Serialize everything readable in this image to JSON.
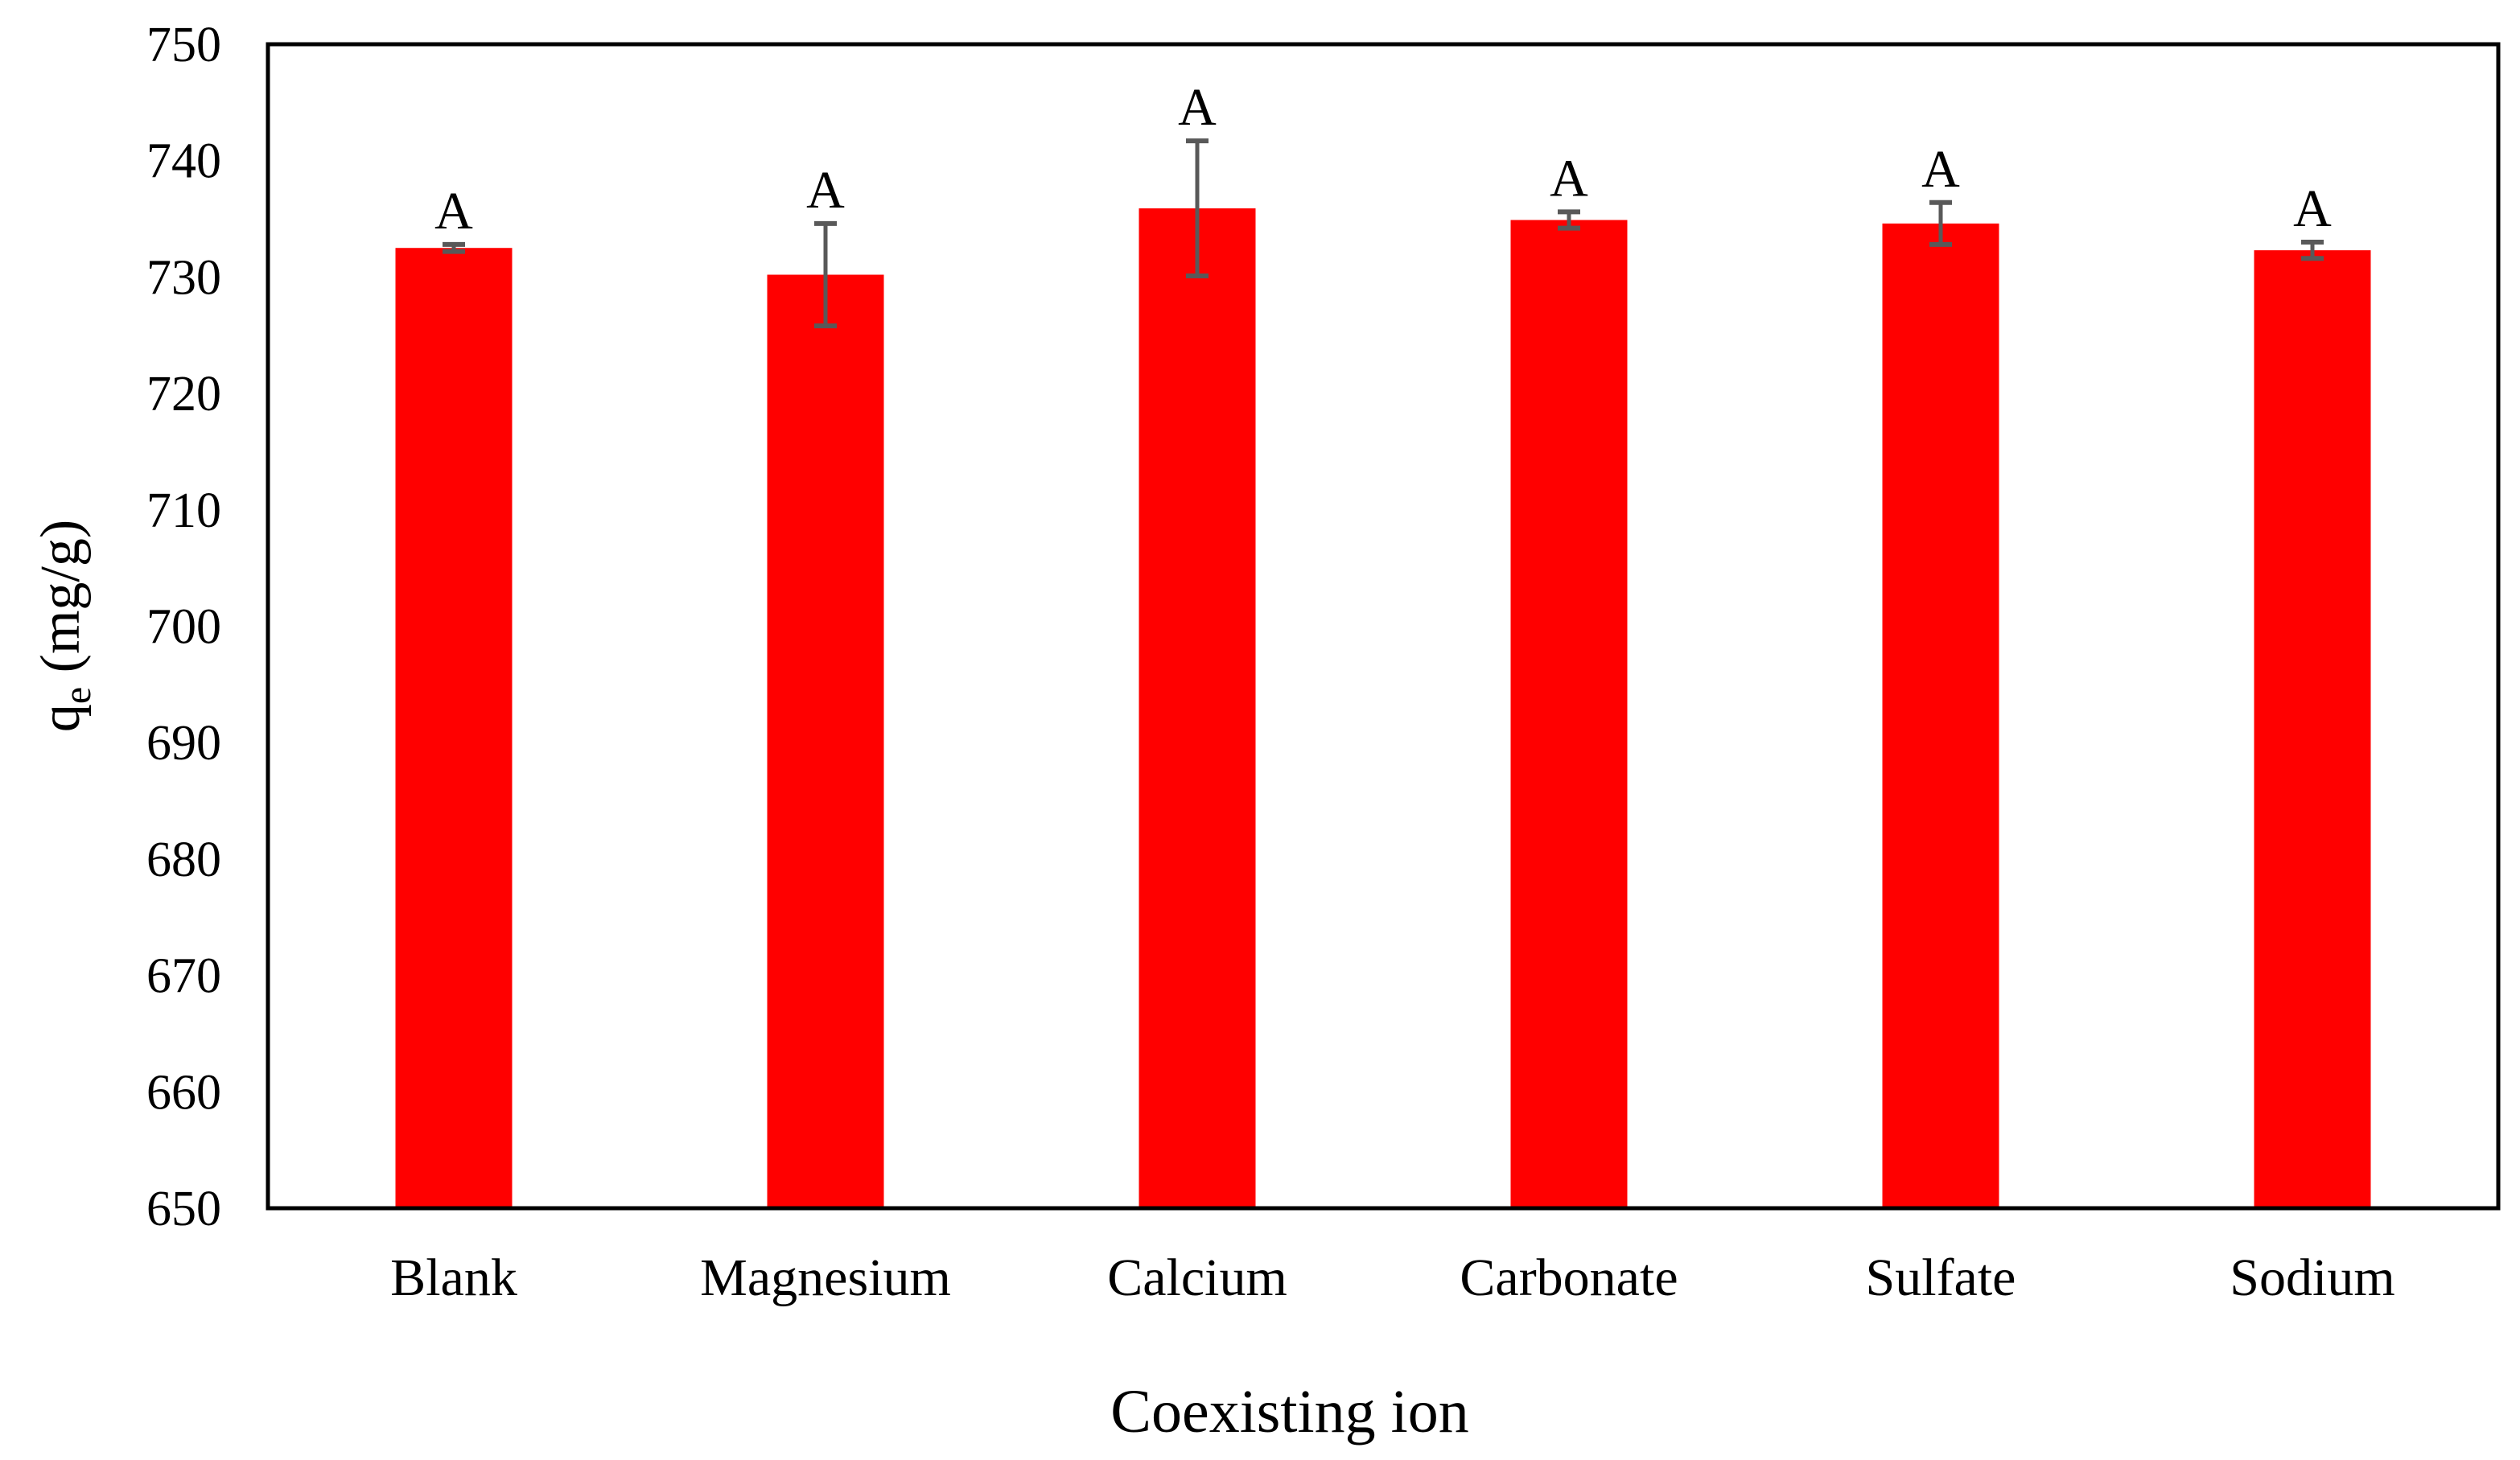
{
  "chart_data": {
    "type": "bar",
    "title": "",
    "xlabel": "Coexisting ion",
    "ylabel": {
      "main": "q",
      "sub": "e",
      "unit": " (mg/g)"
    },
    "categories": [
      "Blank",
      "Magnesium",
      "Calcium",
      "Carbonate",
      "Sulfate",
      "Sodium"
    ],
    "values": [
      732.5,
      730.2,
      735.9,
      734.9,
      734.6,
      732.3
    ],
    "errors": [
      0.3,
      4.4,
      5.8,
      0.7,
      1.8,
      0.7
    ],
    "significance": [
      "A",
      "A",
      "A",
      "A",
      "A",
      "A"
    ],
    "ylim": [
      650,
      750
    ],
    "yticks": [
      650,
      660,
      670,
      680,
      690,
      700,
      710,
      720,
      730,
      740,
      750
    ],
    "grid": false,
    "legend": "none",
    "colors": {
      "bar": "#ff0000",
      "error_bar": "#595959",
      "axis": "#000000"
    }
  }
}
